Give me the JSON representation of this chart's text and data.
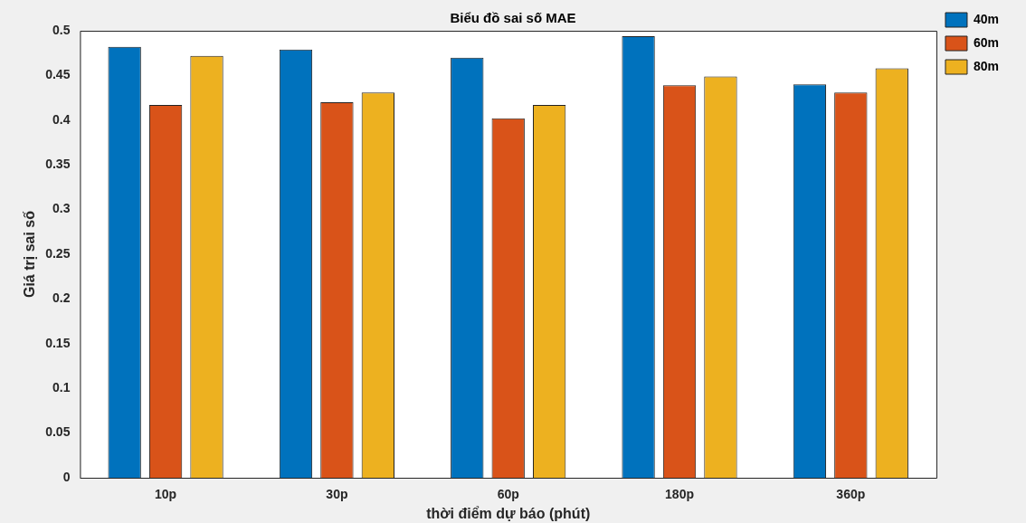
{
  "chart_data": {
    "type": "bar",
    "title": "Biểu đồ sai số MAE",
    "xlabel": "thời điểm dự báo (phút)",
    "ylabel": "Giá trị sai số",
    "categories": [
      "10p",
      "30p",
      "60p",
      "180p",
      "360p"
    ],
    "series": [
      {
        "name": "40m",
        "color": "#0072bd",
        "values": [
          0.482,
          0.479,
          0.47,
          0.494,
          0.44
        ]
      },
      {
        "name": "60m",
        "color": "#d95319",
        "values": [
          0.417,
          0.42,
          0.402,
          0.439,
          0.431
        ]
      },
      {
        "name": "80m",
        "color": "#edb120",
        "values": [
          0.472,
          0.431,
          0.417,
          0.449,
          0.458
        ]
      }
    ],
    "ylim": [
      0,
      0.5
    ],
    "yticks": [
      0,
      0.05,
      0.1,
      0.15,
      0.2,
      0.25,
      0.3,
      0.35,
      0.4,
      0.45,
      0.5
    ],
    "grid": false,
    "legend": "top right"
  }
}
